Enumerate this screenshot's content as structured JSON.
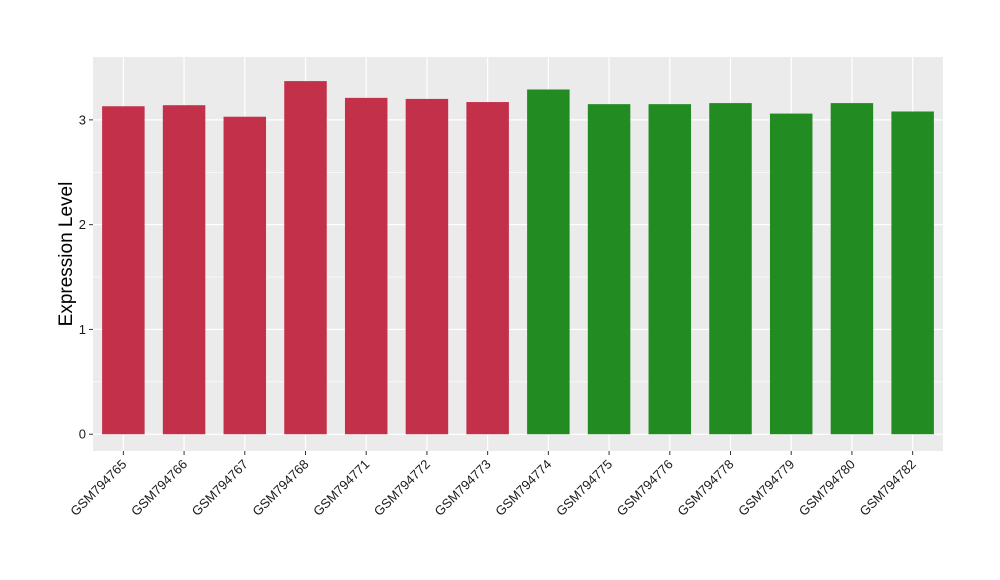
{
  "chart_data": {
    "type": "bar",
    "title": "",
    "xlabel": "",
    "ylabel": "Expression Level",
    "ylim": [
      -0.16,
      3.6
    ],
    "yticks": [
      0,
      1,
      2,
      3
    ],
    "grid": true,
    "legend": "none",
    "categories": [
      "GSM794765",
      "GSM794766",
      "GSM794767",
      "GSM794768",
      "GSM794771",
      "GSM794772",
      "GSM794773",
      "GSM794774",
      "GSM794775",
      "GSM794776",
      "GSM794778",
      "GSM794779",
      "GSM794780",
      "GSM794782"
    ],
    "values": [
      3.13,
      3.14,
      3.03,
      3.37,
      3.21,
      3.2,
      3.17,
      3.29,
      3.15,
      3.15,
      3.16,
      3.06,
      3.16,
      3.08
    ],
    "bar_colors": [
      "#C3304A",
      "#C3304A",
      "#C3304A",
      "#C3304A",
      "#C3304A",
      "#C3304A",
      "#C3304A",
      "#228B22",
      "#228B22",
      "#228B22",
      "#228B22",
      "#228B22",
      "#228B22",
      "#228B22"
    ],
    "panel_background": "#EBEBEB",
    "grid_color": "#FFFFFF"
  }
}
